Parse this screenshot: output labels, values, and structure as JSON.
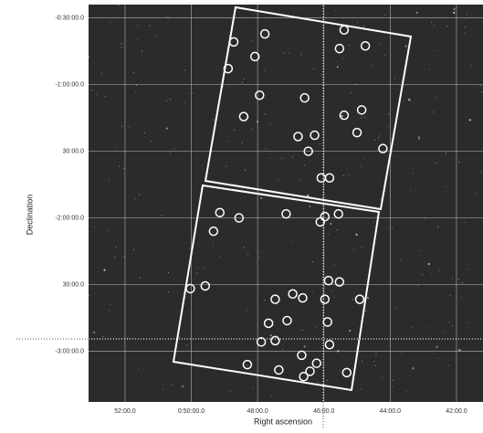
{
  "chart_data": {
    "type": "scatter",
    "x_label": "Right ascension",
    "y_label": "Declination",
    "xlim": [
      53.1,
      41.2
    ],
    "ylim": [
      -3.38,
      -0.4
    ],
    "xticks": [
      {
        "value": 52,
        "label": "52:00.0"
      },
      {
        "value": 50,
        "label": "0:50:00.0"
      },
      {
        "value": 48,
        "label": "48:00.0"
      },
      {
        "value": 46,
        "label": "46:00.0"
      },
      {
        "value": 44,
        "label": "44:00.0"
      },
      {
        "value": 42,
        "label": "42:00.0"
      }
    ],
    "yticks": [
      {
        "value": -0.5,
        "label": "-0:30:00.0"
      },
      {
        "value": -1,
        "label": "-1:00:00.0"
      },
      {
        "value": -1.5,
        "label": "30:00.0"
      },
      {
        "value": -2,
        "label": "-2:00:00.0"
      },
      {
        "value": -2.5,
        "label": "30:00.0"
      },
      {
        "value": -3,
        "label": "-3:00:00.0"
      }
    ],
    "grid": true,
    "color": "#ffffff",
    "x": [
      45.39,
      47.78,
      48.72,
      45.53,
      44.75,
      48.08,
      48.89,
      47.94,
      46.58,
      44.86,
      48.42,
      45.39,
      46.78,
      46.28,
      45.0,
      46.47,
      44.22,
      46.08,
      45.83,
      49.14,
      48.56,
      47.14,
      45.97,
      45.56,
      46.11,
      49.33,
      45.86,
      45.53,
      50.03,
      49.58,
      46.94,
      46.64,
      47.47,
      45.97,
      44.92,
      47.11,
      47.67,
      45.89,
      47.47,
      47.89,
      45.83,
      48.31,
      46.67,
      46.22,
      47.36,
      46.42,
      46.61,
      45.31
    ],
    "values": [
      -0.59,
      -0.62,
      -0.68,
      -0.73,
      -0.71,
      -0.79,
      -0.88,
      -1.08,
      -1.1,
      -1.19,
      -1.24,
      -1.23,
      -1.39,
      -1.38,
      -1.36,
      -1.5,
      -1.48,
      -1.7,
      -1.7,
      -1.96,
      -2.0,
      -1.97,
      -1.99,
      -1.97,
      -2.03,
      -2.1,
      -2.47,
      -2.48,
      -2.53,
      -2.51,
      -2.57,
      -2.6,
      -2.61,
      -2.61,
      -2.61,
      -2.77,
      -2.79,
      -2.78,
      -2.92,
      -2.93,
      -2.95,
      -3.1,
      -3.03,
      -3.09,
      -3.14,
      -3.15,
      -3.19,
      -3.16
    ]
  }
}
